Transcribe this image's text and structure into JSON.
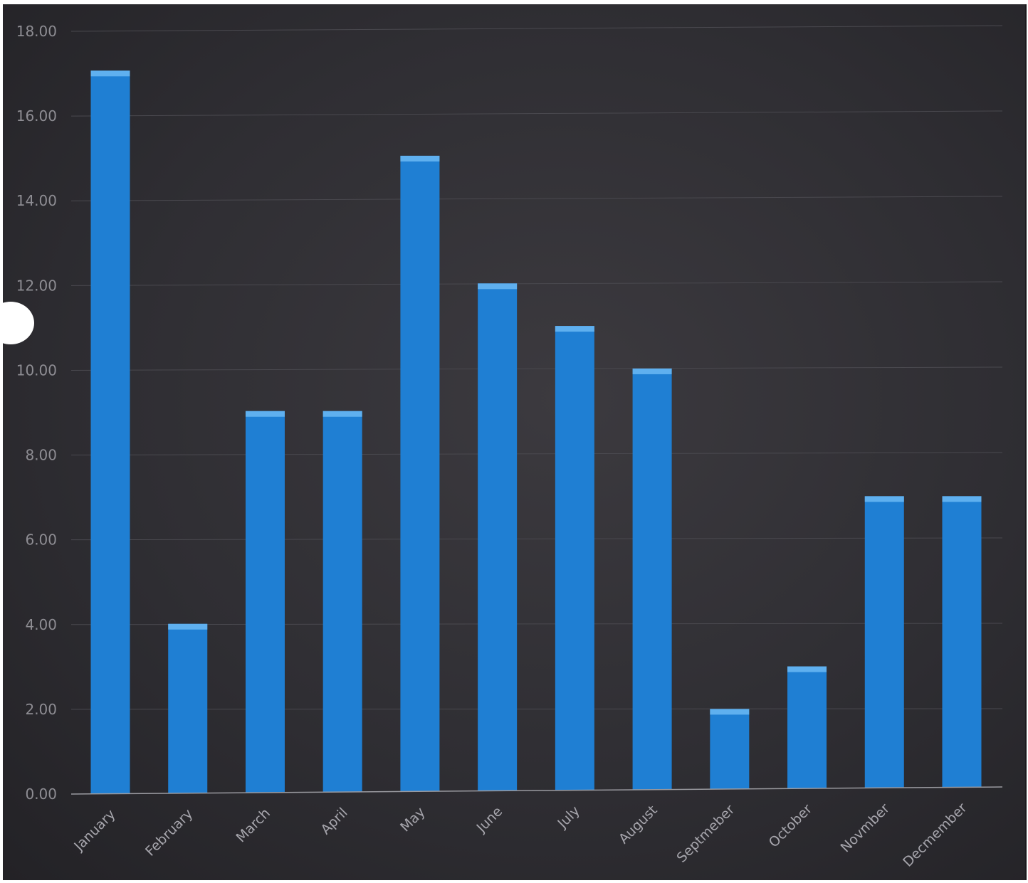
{
  "chart_data": {
    "type": "bar",
    "title": "",
    "xlabel": "",
    "ylabel": "",
    "ylim": [
      0,
      18
    ],
    "yticks": [
      "0.00",
      "2.00",
      "4.00",
      "6.00",
      "8.00",
      "10.00",
      "12.00",
      "14.00",
      "16.00",
      "18.00"
    ],
    "categories": [
      "January",
      "February",
      "March",
      "April",
      "May",
      "June",
      "July",
      "August",
      "Septmeber",
      "October",
      "Novmber",
      "Decmember"
    ],
    "values": [
      17,
      4,
      9,
      9,
      15,
      12,
      11,
      10,
      2,
      3,
      7,
      7
    ],
    "grid": true,
    "legend": "none",
    "colors": {
      "bar": "#1f7fd3",
      "bar_top": "#5fb0ef",
      "background": "#323136",
      "gridline": "#4a494f",
      "axis": "#9a9aa0"
    }
  }
}
